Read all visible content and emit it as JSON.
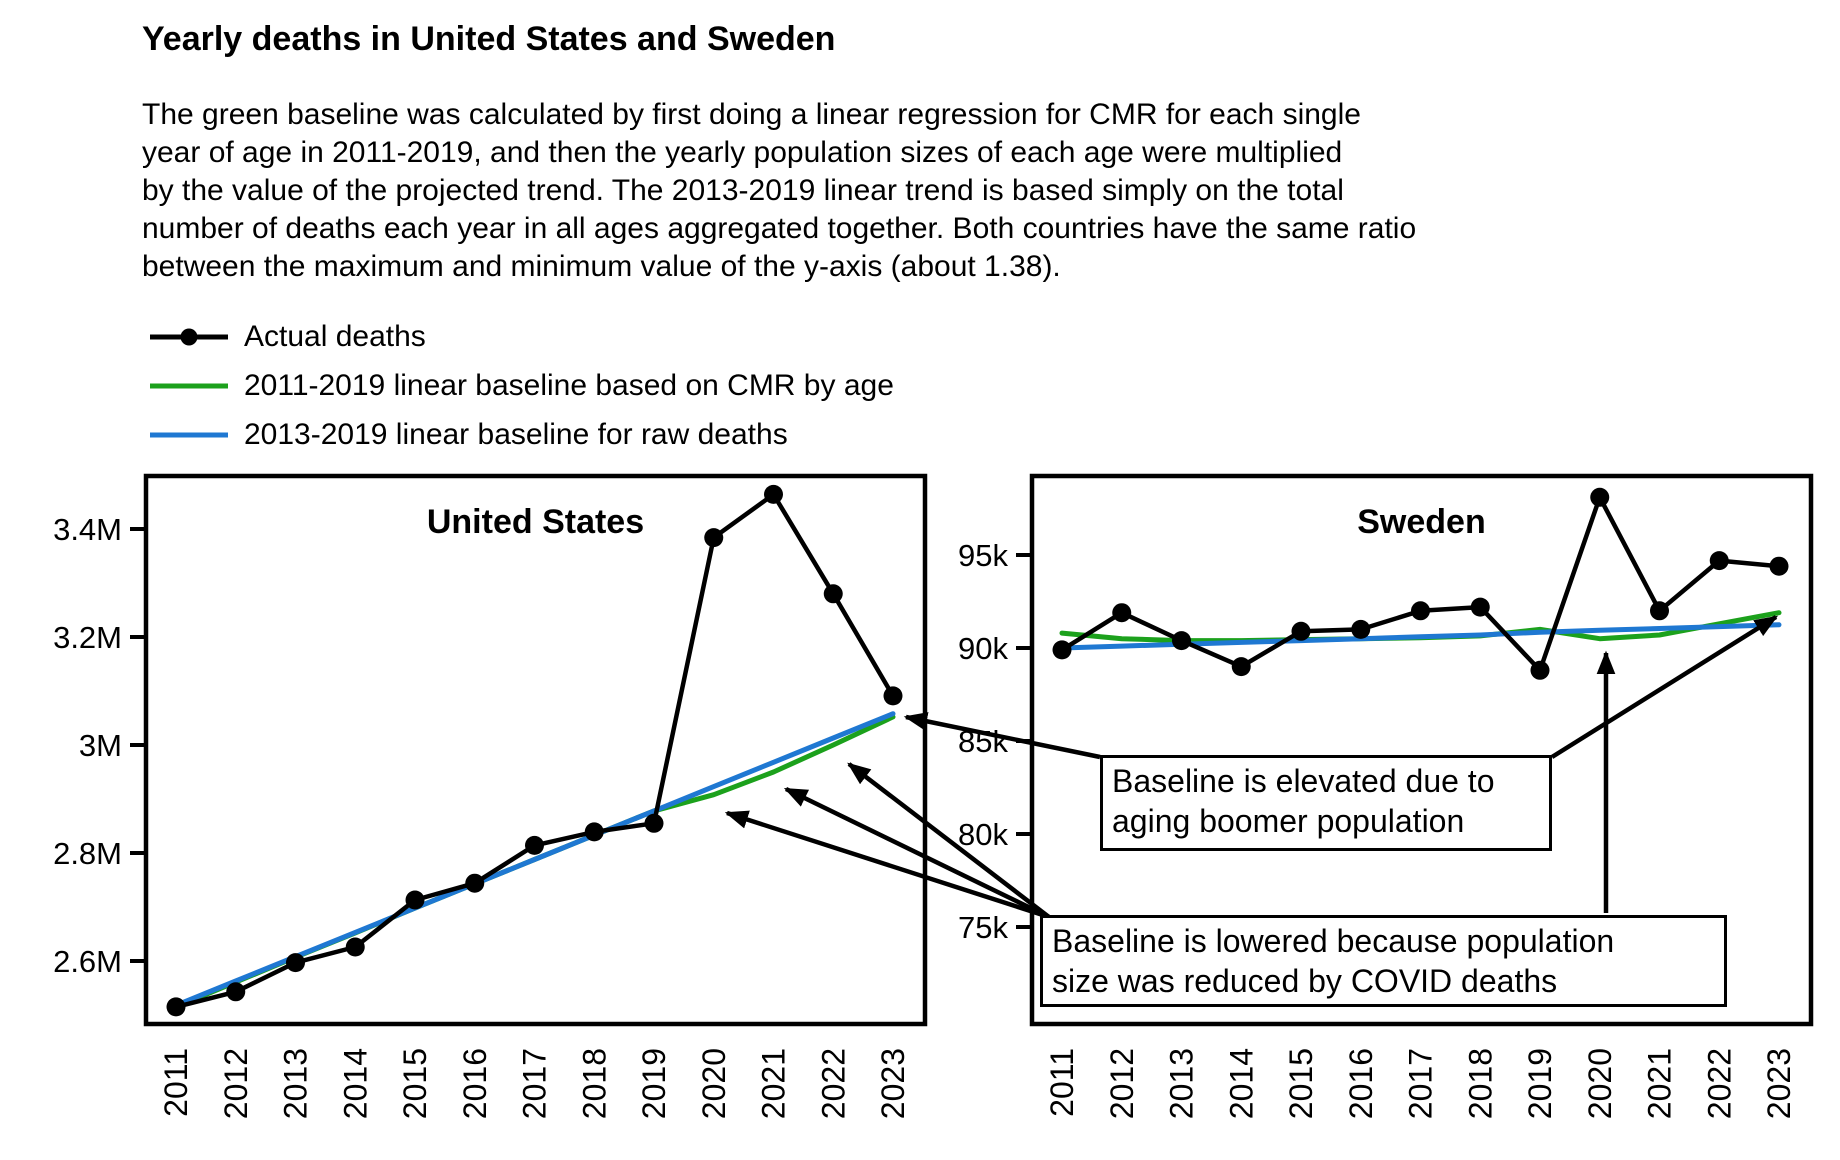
{
  "page": {
    "title": "Yearly deaths in United States and Sweden",
    "description_lines": [
      "The green baseline was calculated by first doing a linear regression for CMR for each single",
      "year of age in 2011-2019, and then the yearly population sizes of each age were multiplied",
      "by the value of the projected trend. The 2013-2019 linear trend is based simply on the total",
      "number of deaths each year in all ages aggregated together. Both countries have the same ratio",
      "between the maximum and minimum value of the y-axis (about 1.38)."
    ]
  },
  "legend": {
    "items": [
      {
        "label": "Actual deaths",
        "marker": "line-with-dot",
        "color": "#000000"
      },
      {
        "label": "2011-2019 linear baseline based on CMR by age",
        "marker": "line",
        "color": "#1CA11C"
      },
      {
        "label": "2013-2019 linear baseline for raw deaths",
        "marker": "line",
        "color": "#1F78D2"
      }
    ]
  },
  "annotations": {
    "elevated": {
      "lines": [
        "Baseline is elevated due to",
        "aging boomer population"
      ]
    },
    "lowered": {
      "lines": [
        "Baseline is lowered because population",
        "size was reduced by COVID deaths"
      ]
    }
  },
  "chart_data": [
    {
      "type": "line",
      "title": "United States",
      "x": [
        2011,
        2012,
        2013,
        2014,
        2015,
        2016,
        2017,
        2018,
        2019,
        2020,
        2021,
        2022,
        2023
      ],
      "y_unit": "millions of deaths",
      "y_ticks": {
        "values": [
          3.4,
          3.2,
          3.0,
          2.8,
          2.6
        ],
        "labels": [
          "3.4M",
          "3.2M",
          "3M",
          "2.8M",
          "2.6M"
        ]
      },
      "ylim": [
        2.5,
        3.5
      ],
      "grid": false,
      "series": [
        {
          "name": "Actual deaths",
          "values": [
            2.515,
            2.543,
            2.597,
            2.626,
            2.713,
            2.744,
            2.814,
            2.839,
            2.855,
            3.384,
            3.464,
            3.28,
            3.091
          ]
        },
        {
          "name": "2011-2019 linear baseline based on CMR by age",
          "values": [
            2.515,
            2.561,
            2.607,
            2.652,
            2.698,
            2.743,
            2.788,
            2.833,
            2.878,
            2.908,
            2.95,
            3.0,
            3.052
          ]
        },
        {
          "name": "2013-2019 linear baseline for raw deaths",
          "values": [
            2.518,
            2.563,
            2.608,
            2.653,
            2.698,
            2.743,
            2.788,
            2.833,
            2.878,
            2.923,
            2.968,
            3.013,
            3.058
          ]
        }
      ]
    },
    {
      "type": "line",
      "title": "Sweden",
      "x": [
        2011,
        2012,
        2013,
        2014,
        2015,
        2016,
        2017,
        2018,
        2019,
        2020,
        2021,
        2022,
        2023
      ],
      "y_unit": "thousands of deaths",
      "y_ticks": {
        "values": [
          95,
          90,
          85,
          80,
          75
        ],
        "labels": [
          "95k",
          "90k",
          "85k",
          "80k",
          "75k"
        ]
      },
      "ylim": [
        70,
        99.5
      ],
      "grid": false,
      "series": [
        {
          "name": "Actual deaths",
          "values": [
            89.9,
            91.9,
            90.4,
            89.0,
            90.9,
            91.0,
            92.0,
            92.2,
            88.8,
            98.1,
            92.0,
            94.7,
            94.4
          ]
        },
        {
          "name": "2011-2019 linear baseline based on CMR by age",
          "values": [
            90.8,
            90.5,
            90.4,
            90.4,
            90.45,
            90.5,
            90.55,
            90.65,
            91.0,
            90.5,
            90.7,
            91.3,
            91.9
          ]
        },
        {
          "name": "2013-2019 linear baseline for raw deaths",
          "values": [
            90.0,
            90.1,
            90.2,
            90.3,
            90.4,
            90.5,
            90.6,
            90.7,
            90.85,
            90.95,
            91.05,
            91.15,
            91.25
          ]
        }
      ]
    }
  ]
}
